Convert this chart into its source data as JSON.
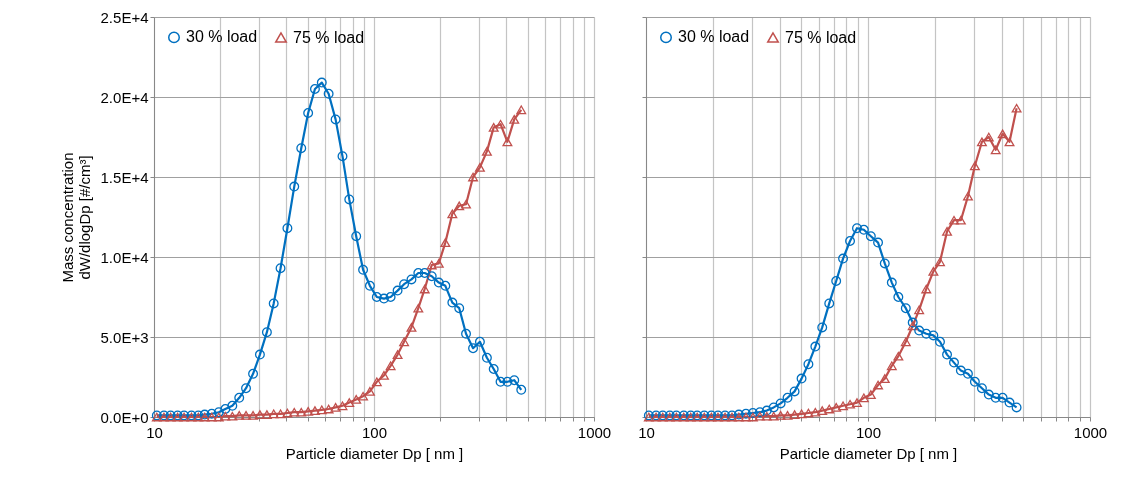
{
  "chart_data": [
    {
      "type": "line",
      "xlabel": "Particle diameter Dp [ nm ]",
      "ylabel": "Mass concentration\ndW/dlogDp [#/cm³]",
      "log": "x",
      "grid": true,
      "legend": "top left",
      "line_style": "solid",
      "x": [
        10.3,
        11.1,
        11.9,
        12.8,
        13.7,
        14.8,
        15.9,
        17.0,
        18.3,
        19.7,
        21.1,
        22.7,
        24.4,
        26.2,
        28.2,
        30.3,
        32.6,
        35.0,
        37.6,
        40.4,
        43.4,
        46.7,
        50.2,
        53.9,
        57.9,
        62.2,
        66.9,
        71.9,
        77.2,
        83.0,
        89.2,
        95.8,
        103,
        111,
        119,
        128,
        137,
        148,
        159,
        170,
        183,
        197,
        211,
        227,
        244,
        262,
        282,
        303,
        326,
        350,
        376,
        404,
        434,
        467
      ],
      "xlim": [
        10,
        1000
      ],
      "xticks": [
        10,
        {
          "value": 20,
          "label": null
        },
        {
          "value": 30,
          "label": null
        },
        {
          "value": 40,
          "label": null
        },
        {
          "value": 50,
          "label": null
        },
        {
          "value": 60,
          "label": null
        },
        {
          "value": 70,
          "label": null
        },
        {
          "value": 80,
          "label": null
        },
        {
          "value": 90,
          "label": null
        },
        100,
        {
          "value": 200,
          "label": null
        },
        {
          "value": 300,
          "label": null
        },
        {
          "value": 400,
          "label": null
        },
        {
          "value": 500,
          "label": null
        },
        {
          "value": 600,
          "label": null
        },
        {
          "value": 700,
          "label": null
        },
        {
          "value": 800,
          "label": null
        },
        {
          "value": 900,
          "label": null
        },
        1000
      ],
      "ylim": [
        0,
        25000
      ],
      "yticks": [
        {
          "value": 0,
          "label": "0.0E+0"
        },
        {
          "value": 5000,
          "label": "5.0E+3"
        },
        {
          "value": 10000,
          "label": "1.0E+4"
        },
        {
          "value": 15000,
          "label": "1.5E+4"
        },
        {
          "value": 20000,
          "label": "2.0E+4"
        },
        {
          "value": 25000,
          "label": "2.5E+4"
        }
      ],
      "series": [
        {
          "name": "30 % load",
          "color": "#0070c0",
          "marker": "circle",
          "values": [
            100,
            100,
            100,
            100,
            100,
            100,
            100,
            150,
            200,
            300,
            500,
            700,
            1200,
            1800,
            2700,
            3900,
            5300,
            7100,
            9300,
            11800,
            14400,
            16800,
            19000,
            20500,
            20900,
            20200,
            18600,
            16300,
            13600,
            11300,
            9200,
            8200,
            7500,
            7400,
            7500,
            7900,
            8300,
            8600,
            9000,
            9000,
            8800,
            8400,
            8200,
            7150,
            6800,
            5200,
            4300,
            4700,
            3700,
            3000,
            2200,
            2200,
            2300,
            1700
          ]
        },
        {
          "name": "75 % load",
          "color": "#c0504d",
          "marker": "triangle",
          "values": [
            0,
            0,
            0,
            0,
            0,
            0,
            0,
            0,
            0,
            0,
            50,
            50,
            100,
            100,
            100,
            150,
            150,
            200,
            200,
            250,
            300,
            300,
            350,
            400,
            450,
            500,
            600,
            700,
            900,
            1100,
            1300,
            1600,
            2200,
            2600,
            3200,
            3900,
            4700,
            5600,
            6800,
            8000,
            9500,
            9600,
            10900,
            12700,
            13200,
            13300,
            15000,
            15600,
            16600,
            18100,
            18300,
            17200,
            18600,
            19200
          ]
        }
      ]
    },
    {
      "type": "line",
      "xlabel": "Particle diameter Dp [ nm ]",
      "log": "x",
      "grid": true,
      "legend": "top left",
      "line_style": "solid",
      "tick_labels": "x",
      "x": [
        10.3,
        11.1,
        11.9,
        12.8,
        13.7,
        14.8,
        15.9,
        17.0,
        18.3,
        19.7,
        21.1,
        22.7,
        24.4,
        26.2,
        28.2,
        30.3,
        32.6,
        35.0,
        37.6,
        40.4,
        43.4,
        46.7,
        50.2,
        53.9,
        57.9,
        62.2,
        66.9,
        71.9,
        77.2,
        83.0,
        89.2,
        95.8,
        103,
        111,
        119,
        128,
        137,
        148,
        159,
        170,
        183,
        197,
        211,
        227,
        244,
        262,
        282,
        303,
        326,
        350,
        376,
        404,
        434,
        467
      ],
      "xlim": [
        10,
        1000
      ],
      "xticks": [
        10,
        {
          "value": 20,
          "label": null
        },
        {
          "value": 30,
          "label": null
        },
        {
          "value": 40,
          "label": null
        },
        {
          "value": 50,
          "label": null
        },
        {
          "value": 60,
          "label": null
        },
        {
          "value": 70,
          "label": null
        },
        {
          "value": 80,
          "label": null
        },
        {
          "value": 90,
          "label": null
        },
        100,
        {
          "value": 200,
          "label": null
        },
        {
          "value": 300,
          "label": null
        },
        {
          "value": 400,
          "label": null
        },
        {
          "value": 500,
          "label": null
        },
        {
          "value": 600,
          "label": null
        },
        {
          "value": 700,
          "label": null
        },
        {
          "value": 800,
          "label": null
        },
        {
          "value": 900,
          "label": null
        },
        1000
      ],
      "ylim": [
        0,
        25000
      ],
      "yticks": [
        0,
        5000,
        10000,
        15000,
        20000,
        25000
      ],
      "series": [
        {
          "name": "30 % load",
          "color": "#0070c0",
          "marker": "circle",
          "values": [
            100,
            100,
            100,
            100,
            100,
            100,
            100,
            100,
            100,
            100,
            100,
            100,
            100,
            150,
            200,
            250,
            300,
            400,
            600,
            850,
            1200,
            1600,
            2400,
            3300,
            4400,
            5600,
            7100,
            8500,
            9900,
            11000,
            11800,
            11700,
            11300,
            10900,
            9600,
            8400,
            7500,
            6800,
            5900,
            5400,
            5200,
            5100,
            4700,
            3900,
            3400,
            2900,
            2700,
            2200,
            1800,
            1400,
            1200,
            1200,
            900,
            600
          ]
        },
        {
          "name": "75 % load",
          "color": "#c0504d",
          "marker": "triangle",
          "values": [
            0,
            0,
            0,
            0,
            0,
            0,
            0,
            0,
            0,
            0,
            0,
            0,
            0,
            0,
            0,
            0,
            50,
            50,
            50,
            100,
            100,
            150,
            200,
            250,
            300,
            400,
            500,
            600,
            700,
            800,
            900,
            1200,
            1400,
            2000,
            2400,
            3200,
            3800,
            4700,
            5700,
            6700,
            8000,
            9100,
            9700,
            11600,
            12300,
            12300,
            13800,
            15700,
            17200,
            17500,
            16700,
            17700,
            17200,
            19300
          ]
        }
      ]
    }
  ]
}
